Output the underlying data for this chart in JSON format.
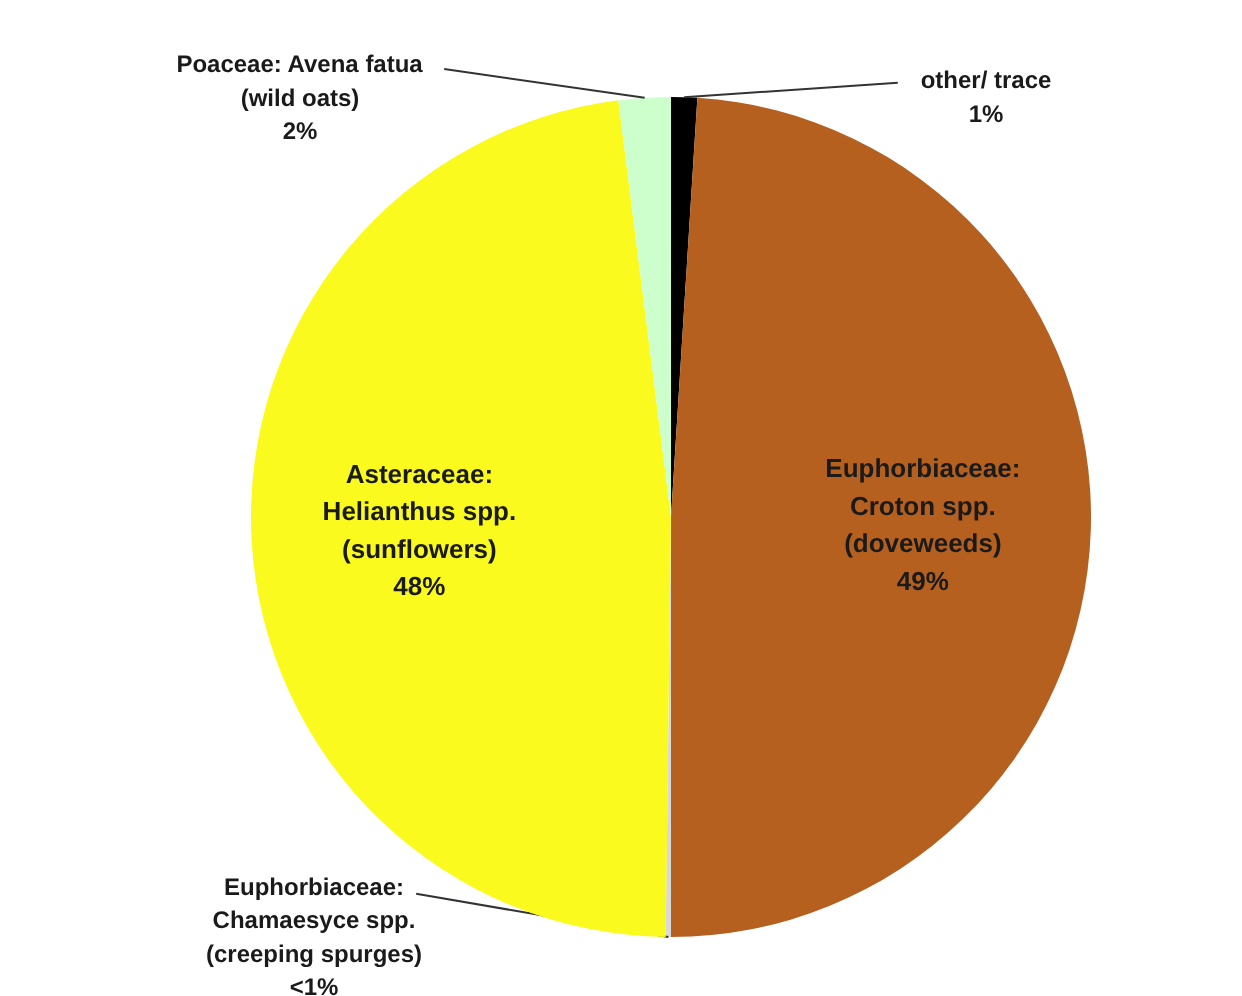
{
  "chart_data": {
    "type": "pie",
    "categories": [
      "other/ trace",
      "Euphorbiaceae:\nCroton spp.\n(doveweeds)",
      "Euphorbiaceae:\nChamaesyce spp.\n(creeping spurges)",
      "Asteraceae:\nHelianthus spp.\n(sunflowers)",
      "Poaceae: Avena fatua\n(wild oats)"
    ],
    "values": [
      1,
      49,
      0.2,
      47.8,
      2
    ],
    "colors": [
      "#000000",
      "#b5601f",
      "#d9d9d9",
      "#fafa1e",
      "#ccffcc"
    ],
    "value_labels": [
      "1%",
      "49%",
      "<1%",
      "48%",
      "2%"
    ]
  }
}
